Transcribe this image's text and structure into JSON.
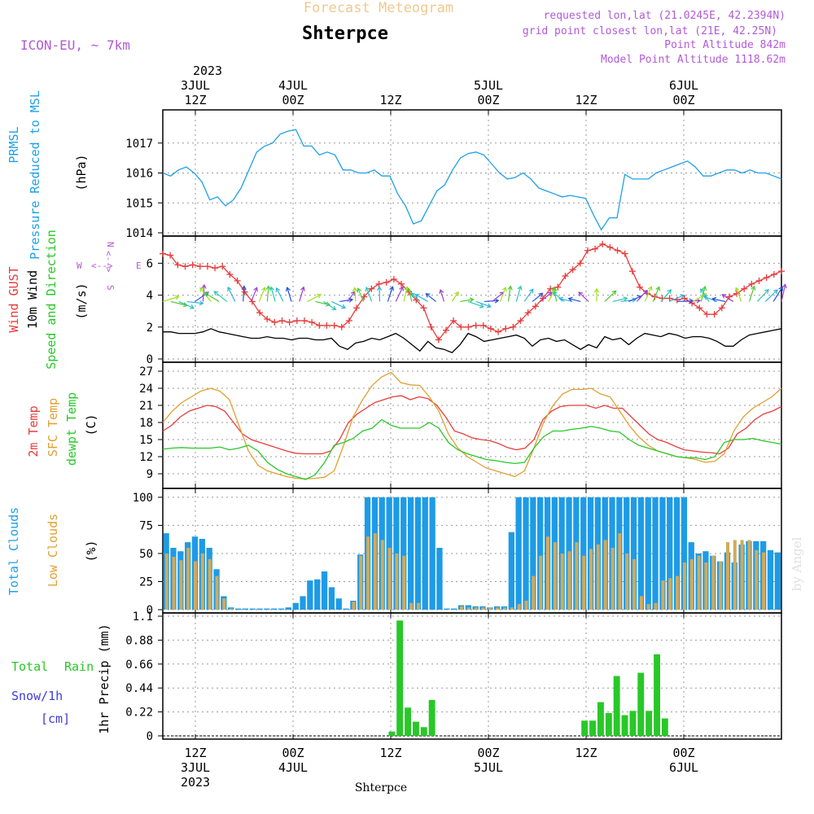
{
  "header": {
    "faint_title": "Forecast Meteogram",
    "location": "Shterpce",
    "model": "ICON-EU, ~ 7km",
    "requested": "requested lon,lat (21.0245E, 42.2394N)",
    "grid_point": "grid point closest lon,lat (21E, 42.25N)",
    "point_alt": "Point Altitude 842m",
    "model_alt": "Model Point Altitude 1118.62m"
  },
  "top_axis": {
    "year": "2023",
    "ticks": [
      {
        "l1": "3JUL",
        "l2": "12Z",
        "h": 12
      },
      {
        "l1": "4JUL",
        "l2": "00Z",
        "h": 24
      },
      {
        "l1": "",
        "l2": "12Z",
        "h": 36
      },
      {
        "l1": "5JUL",
        "l2": "00Z",
        "h": 48
      },
      {
        "l1": "",
        "l2": "12Z",
        "h": 60
      },
      {
        "l1": "6JUL",
        "l2": "00Z",
        "h": 72
      }
    ]
  },
  "bottom_axis": {
    "ticks": [
      {
        "l1": "12Z",
        "l2": "3JUL",
        "l3": "2023",
        "h": 12
      },
      {
        "l1": "00Z",
        "l2": "4JUL",
        "l3": "",
        "h": 24
      },
      {
        "l1": "12Z",
        "l2": "",
        "l3": "",
        "h": 36
      },
      {
        "l1": "00Z",
        "l2": "5JUL",
        "l3": "",
        "h": 48
      },
      {
        "l1": "12Z",
        "l2": "",
        "l3": "",
        "h": 60
      },
      {
        "l1": "00Z",
        "l2": "6JUL",
        "l3": "",
        "h": 72
      }
    ],
    "station": "Shterpce"
  },
  "watermark": "by Angel",
  "panel_labels": {
    "p1": {
      "a": "PRMSL",
      "b": "Pressure Reduced to MSL",
      "unit": "(hPa)"
    },
    "p2": {
      "a": "Wind GUST",
      "b": "10m Wind",
      "c": "Speed and Direction",
      "unit": "(m/s)",
      "compass_w": "W",
      "compass_e": "E",
      "compass_n": "N",
      "compass_s": "S"
    },
    "p3": {
      "a": "2m Temp",
      "b": "SFC Temp",
      "c": "dewpt Temp",
      "unit": "(C)"
    },
    "p4": {
      "a": "Total Clouds",
      "b": "Low Clouds",
      "unit": "(%)"
    },
    "p5": {
      "a": "Total",
      "a2": "Rain",
      "b": "Snow/1h",
      "c": "[cm]",
      "unit": "1hr Precip (mm)"
    }
  },
  "colors": {
    "pressure": "#1ea0e6",
    "gust": "#e83c3c",
    "wind": "#000000",
    "t2m": "#e83c3c",
    "sfc": "#e0a030",
    "dew": "#28c828",
    "total_clouds": "#1e9be6",
    "low_clouds": "#d2aa5a",
    "rain": "#28c828",
    "purple": "#b25ad6",
    "faint": "#f0c890"
  },
  "chart_data": [
    {
      "type": "line",
      "ylabel": "(hPa)",
      "ylim": [
        1014,
        1018
      ],
      "yticks": [
        "1014",
        "1015",
        "1016",
        "1017"
      ],
      "x_start_hour": 8,
      "x_end_hour": 84,
      "series": [
        {
          "name": "PRMSL",
          "values": [
            1016.0,
            1015.9,
            1016.1,
            1016.2,
            1016.0,
            1015.7,
            1015.1,
            1015.2,
            1014.9,
            1015.1,
            1015.5,
            1016.1,
            1016.7,
            1016.9,
            1017.0,
            1017.3,
            1017.4,
            1017.45,
            1016.9,
            1016.9,
            1016.6,
            1016.7,
            1016.6,
            1016.1,
            1016.1,
            1016.0,
            1016.0,
            1016.1,
            1015.9,
            1015.9,
            1015.3,
            1014.9,
            1014.3,
            1014.4,
            1014.9,
            1015.4,
            1015.6,
            1016.1,
            1016.5,
            1016.65,
            1016.7,
            1016.6,
            1016.3,
            1016.0,
            1015.8,
            1015.85,
            1016.0,
            1015.8,
            1015.5,
            1015.4,
            1015.3,
            1015.2,
            1015.25,
            1015.2,
            1015.15,
            1014.6,
            1014.1,
            1014.5,
            1014.5,
            1015.95,
            1015.8,
            1015.8,
            1015.8,
            1016.0,
            1016.1,
            1016.2,
            1016.3,
            1016.4,
            1016.2,
            1015.9,
            1015.9,
            1016.0,
            1016.1,
            1016.1,
            1016.0,
            1016.1,
            1016.0,
            1016.0,
            1015.9,
            1015.8
          ]
        }
      ]
    },
    {
      "type": "line",
      "ylabel": "(m/s)",
      "ylim": [
        0,
        7.5
      ],
      "yticks": [
        "0",
        "2",
        "4",
        "6"
      ],
      "x_start_hour": 8,
      "x_end_hour": 84,
      "series": [
        {
          "name": "Wind GUST",
          "values": [
            6.6,
            6.5,
            5.9,
            5.8,
            5.9,
            5.8,
            5.8,
            5.7,
            5.8,
            5.3,
            4.9,
            4.2,
            3.6,
            2.9,
            2.5,
            2.3,
            2.4,
            2.3,
            2.4,
            2.4,
            2.3,
            2.1,
            2.1,
            2.1,
            2.0,
            2.4,
            3.2,
            3.9,
            4.4,
            4.7,
            4.8,
            5.0,
            4.7,
            4.2,
            3.7,
            3.2,
            2.0,
            1.2,
            1.8,
            2.4,
            2.0,
            2.0,
            2.1,
            2.1,
            1.9,
            1.7,
            1.9,
            2.0,
            2.4,
            2.9,
            3.3,
            3.8,
            4.4,
            4.5,
            5.2,
            5.6,
            6.0,
            6.8,
            6.9,
            7.2,
            7.0,
            6.8,
            6.6,
            5.5,
            4.5,
            4.1,
            3.9,
            3.8,
            3.8,
            3.7,
            3.8,
            3.5,
            3.2,
            2.8,
            2.8,
            3.2,
            3.9,
            4.1,
            4.4,
            4.7,
            4.9,
            5.1,
            5.3,
            5.5
          ]
        },
        {
          "name": "10m Wind",
          "values": [
            1.7,
            1.7,
            1.6,
            1.6,
            1.6,
            1.7,
            1.9,
            1.7,
            1.6,
            1.5,
            1.4,
            1.3,
            1.3,
            1.4,
            1.3,
            1.3,
            1.2,
            1.3,
            1.3,
            1.2,
            1.2,
            1.3,
            0.8,
            0.6,
            1.0,
            1.1,
            1.3,
            1.2,
            1.4,
            1.6,
            1.3,
            0.9,
            0.5,
            1.1,
            0.7,
            0.6,
            0.4,
            0.9,
            1.6,
            1.4,
            1.1,
            1.2,
            1.3,
            1.4,
            1.5,
            1.3,
            0.8,
            1.2,
            1.3,
            1.1,
            1.2,
            0.9,
            0.6,
            0.9,
            0.7,
            1.4,
            1.2,
            1.3,
            0.9,
            1.3,
            1.6,
            1.5,
            1.4,
            1.6,
            1.5,
            1.3,
            1.4,
            1.4,
            1.3,
            1.1,
            0.8,
            0.8,
            1.2,
            1.5,
            1.6,
            1.7,
            1.8,
            1.9
          ]
        }
      ],
      "wind_arrow_colors": [
        "#a0e020",
        "#50c830",
        "#28c8b4",
        "#30b4d8",
        "#2050e0",
        "#a040d0"
      ]
    },
    {
      "type": "line",
      "ylabel": "(C)",
      "ylim": [
        7,
        28
      ],
      "yticks": [
        "9",
        "12",
        "15",
        "18",
        "21",
        "24",
        "27"
      ],
      "x_start_hour": 8,
      "x_end_hour": 84,
      "series": [
        {
          "name": "2m Temp",
          "values": [
            16.5,
            17.5,
            19,
            20,
            20.5,
            21,
            20.8,
            20,
            18,
            16,
            15,
            14.5,
            14,
            13.5,
            13,
            12.6,
            12.5,
            12.5,
            12.5,
            13,
            15,
            18,
            19.5,
            20.5,
            21.5,
            22,
            22.5,
            22.7,
            22,
            22.5,
            22.2,
            21,
            19,
            16.5,
            16,
            15.3,
            15,
            14.8,
            14.3,
            13.6,
            13.2,
            13.5,
            15,
            18.5,
            20,
            20.8,
            21,
            21,
            21,
            20.5,
            21,
            20.5,
            20.5,
            19,
            17.5,
            16,
            15,
            14.5,
            13.8,
            13.2,
            13,
            12.8,
            12.7,
            12.5,
            13.5,
            16,
            17,
            18.5,
            19.5,
            20,
            20.8
          ]
        },
        {
          "name": "SFC Temp",
          "values": [
            18,
            20,
            21.5,
            22.5,
            23.5,
            24,
            23.5,
            22,
            17.5,
            13,
            10.5,
            9.5,
            9,
            8.5,
            8.2,
            8.1,
            8.2,
            8.4,
            9.5,
            14,
            19,
            22,
            24.5,
            26,
            26.8,
            25,
            24.6,
            24.5,
            22.5,
            20,
            16,
            13.5,
            12,
            11,
            10,
            9.5,
            9,
            8.5,
            9.5,
            13.5,
            18,
            21,
            23,
            23.8,
            23.8,
            24,
            23,
            22.5,
            20,
            17.5,
            15.5,
            14,
            13,
            12.5,
            12,
            11.8,
            11.5,
            11,
            11.2,
            12.5,
            16.5,
            19,
            20.5,
            21.5,
            22.5,
            24
          ]
        },
        {
          "name": "dewpt Temp",
          "values": [
            13.3,
            13.5,
            13.6,
            13.5,
            13.5,
            13.5,
            13.7,
            13.2,
            13.5,
            14,
            13,
            11,
            9.8,
            9,
            8.5,
            8,
            8.8,
            11,
            14,
            14.5,
            15.2,
            16.5,
            17,
            18.5,
            17.5,
            17,
            17,
            17,
            18,
            17,
            14.5,
            13.2,
            12.5,
            12,
            11.5,
            11.3,
            11,
            10.8,
            11,
            13.5,
            15.5,
            16.5,
            16.5,
            16.8,
            17,
            17.3,
            17,
            16.5,
            16.3,
            15,
            14,
            13.5,
            13,
            12.5,
            12,
            11.8,
            11.8,
            11.5,
            12,
            14.5,
            15,
            15,
            15.2,
            14.8,
            14.5,
            14.2
          ]
        }
      ]
    },
    {
      "type": "bar",
      "ylabel": "(%)",
      "ylim": [
        0,
        105
      ],
      "yticks": [
        "0",
        "25",
        "50",
        "75",
        "100"
      ],
      "x_start_hour": 8,
      "series": [
        {
          "name": "Total Clouds",
          "values": [
            68,
            55,
            52,
            60,
            65,
            63,
            55,
            36,
            12,
            2,
            1,
            1,
            1,
            1,
            1,
            1,
            1,
            2,
            6,
            12,
            26,
            27,
            34,
            20,
            10,
            1,
            8,
            49,
            100,
            100,
            100,
            100,
            100,
            100,
            100,
            100,
            100,
            100,
            55,
            1,
            1,
            4,
            4,
            3,
            3,
            2,
            3,
            3,
            69,
            100,
            100,
            100,
            100,
            100,
            100,
            100,
            100,
            100,
            100,
            100,
            100,
            100,
            100,
            100,
            100,
            100,
            100,
            100,
            100,
            100,
            100,
            100,
            100,
            60,
            50,
            52,
            48,
            43,
            51,
            42,
            58,
            61,
            61,
            61,
            53,
            51
          ]
        },
        {
          "name": "Low Clouds",
          "values": [
            50,
            47,
            44,
            55,
            43,
            50,
            45,
            30,
            10,
            1,
            0,
            0,
            0,
            0,
            0,
            0,
            0,
            0,
            0,
            0,
            0,
            0,
            0,
            0,
            0,
            0,
            7,
            48,
            65,
            68,
            62,
            55,
            50,
            48,
            6,
            6,
            0,
            0,
            0,
            0,
            0,
            3,
            2,
            2,
            2,
            2,
            2,
            2,
            2,
            5,
            8,
            30,
            48,
            65,
            60,
            50,
            52,
            60,
            48,
            54,
            58,
            62,
            55,
            68,
            50,
            45,
            12,
            5,
            6,
            26,
            28,
            30,
            42,
            45,
            48,
            42,
            48,
            43,
            60,
            62,
            62,
            62,
            53,
            51
          ]
        }
      ]
    },
    {
      "type": "bar",
      "ylabel": "1hr Precip (mm)",
      "ylim": [
        0,
        1.1
      ],
      "yticks": [
        "0",
        "0.22",
        "0.44",
        "0.66",
        "0.88",
        "1.1"
      ],
      "x_start_hour": 8,
      "series": [
        {
          "name": "Total Rain",
          "values": [
            0,
            0,
            0,
            0,
            0,
            0,
            0,
            0,
            0,
            0,
            0,
            0,
            0,
            0,
            0,
            0,
            0,
            0,
            0,
            0,
            0,
            0,
            0,
            0,
            0,
            0,
            0,
            0,
            0.04,
            1.06,
            0.26,
            0.13,
            0.08,
            0.33,
            0,
            0,
            0,
            0,
            0,
            0,
            0,
            0,
            0,
            0,
            0,
            0,
            0,
            0,
            0,
            0,
            0,
            0,
            0.14,
            0.14,
            0.31,
            0.21,
            0.55,
            0.19,
            0.23,
            0.58,
            0.23,
            0.75,
            0.16,
            0,
            0,
            0,
            0,
            0,
            0,
            0,
            0,
            0,
            0,
            0,
            0,
            0,
            0
          ]
        }
      ]
    }
  ]
}
